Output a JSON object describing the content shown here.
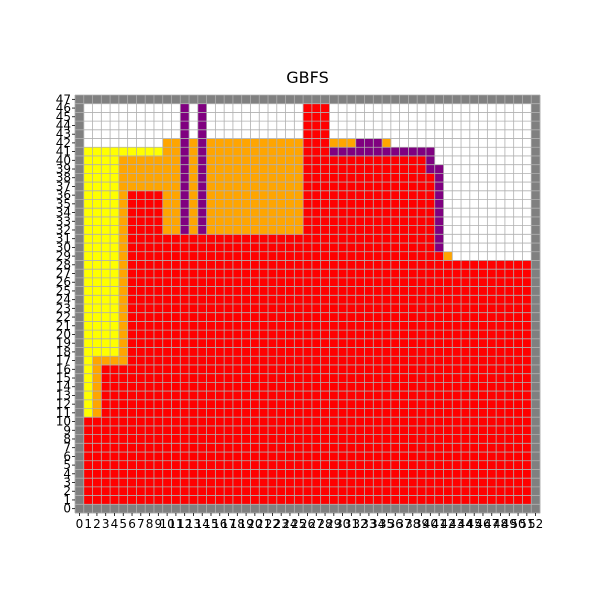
{
  "title": "GBFS",
  "grid": {
    "cols": 53,
    "rows": 48
  },
  "x_ticks": [
    "0",
    "1",
    "2",
    "3",
    "4",
    "5",
    "6",
    "7",
    "8",
    "9",
    "10",
    "11",
    "12",
    "13",
    "14",
    "15",
    "16",
    "17",
    "18",
    "19",
    "20",
    "21",
    "22",
    "23",
    "24",
    "25",
    "26",
    "27",
    "28",
    "29",
    "30",
    "31",
    "32",
    "33",
    "34",
    "35",
    "36",
    "37",
    "38",
    "39",
    "40",
    "41",
    "42",
    "43",
    "44",
    "45",
    "46",
    "47",
    "48",
    "49",
    "50",
    "51",
    "52"
  ],
  "y_ticks": [
    "0",
    "1",
    "2",
    "3",
    "4",
    "5",
    "6",
    "7",
    "8",
    "9",
    "10",
    "11",
    "12",
    "13",
    "14",
    "15",
    "16",
    "17",
    "18",
    "19",
    "20",
    "21",
    "22",
    "23",
    "24",
    "25",
    "26",
    "27",
    "28",
    "29",
    "30",
    "31",
    "32",
    "33",
    "34",
    "35",
    "36",
    "37",
    "38",
    "39",
    "40",
    "41",
    "42",
    "43",
    "44",
    "45",
    "46",
    "47"
  ],
  "colors": {
    "empty": "#ffffff",
    "wall": "#808080",
    "obstacle": "#ff0000",
    "visited": "#ffff00",
    "frontier": "#ffa500",
    "path": "#800080",
    "gridline": "#b0b0b0"
  },
  "layers": {
    "visited": [
      [
        1,
        3,
        27,
        11
      ],
      [
        1,
        18,
        26,
        21
      ],
      [
        1,
        26,
        31,
        10
      ],
      [
        2,
        8,
        34,
        1
      ],
      [
        2,
        9,
        34,
        5
      ],
      [
        2,
        10,
        35,
        4
      ],
      [
        2,
        11,
        46,
        3
      ],
      [
        2,
        12,
        46,
        2
      ],
      [
        2,
        13,
        45,
        1
      ],
      [
        2,
        16,
        36,
        9
      ],
      [
        3,
        9,
        23,
        2
      ],
      [
        3,
        16,
        16,
        1
      ],
      [
        3,
        15,
        35,
        5
      ],
      [
        3,
        18,
        15,
        2
      ],
      [
        4,
        9,
        18,
        1
      ],
      [
        4,
        18,
        14,
        2
      ],
      [
        5,
        10,
        13,
        3
      ],
      [
        6,
        18,
        12,
        5
      ],
      [
        10,
        12,
        12,
        1
      ],
      [
        11,
        11,
        26,
        7
      ],
      [
        12,
        14,
        13,
        1
      ],
      [
        13,
        17,
        11,
        1
      ],
      [
        13,
        24,
        3,
        27
      ],
      [
        13,
        29,
        2,
        1
      ],
      [
        14,
        21,
        2,
        2
      ],
      [
        14,
        23,
        10,
        2
      ],
      [
        14,
        25,
        4,
        3
      ],
      [
        14,
        29,
        2,
        1
      ],
      [
        15,
        31,
        13,
        7
      ],
      [
        16,
        33,
        10,
        3
      ],
      [
        17,
        41,
        1,
        5
      ]
    ],
    "frontier": [
      [
        1,
        3,
        32,
        1
      ],
      [
        2,
        7,
        35,
        1
      ],
      [
        2,
        8,
        34,
        1
      ],
      [
        2,
        4,
        19,
        2
      ],
      [
        3,
        2,
        20,
        1
      ],
      [
        3,
        9,
        3,
        1
      ],
      [
        5,
        40,
        27,
        5
      ],
      [
        9,
        3,
        11,
        1
      ],
      [
        10,
        11,
        39,
        1
      ],
      [
        10,
        12,
        43,
        1
      ],
      [
        10,
        13,
        44,
        1
      ],
      [
        10,
        14,
        45,
        2
      ],
      [
        10,
        15,
        46,
        16
      ],
      [
        10,
        29,
        42,
        1
      ],
      [
        10,
        30,
        38,
        2
      ],
      [
        10,
        37,
        41,
        1
      ],
      [
        10,
        40,
        40,
        1
      ],
      [
        10,
        42,
        34,
        1
      ],
      [
        11,
        5,
        3,
        1
      ],
      [
        12,
        2,
        17,
        1
      ],
      [
        12,
        1,
        18,
        1
      ],
      [
        12,
        17,
        2,
        1
      ],
      [
        15,
        42,
        35,
        1
      ],
      [
        16,
        42,
        34,
        1
      ],
      [
        17,
        42,
        32,
        1
      ]
    ],
    "path": [
      [
        2,
        1,
        2,
        7
      ],
      [
        3,
        9,
        10,
        1
      ],
      [
        3,
        10,
        11,
        1
      ],
      [
        3,
        11,
        11,
        1
      ],
      [
        10,
        10,
        11,
        20
      ],
      [
        11,
        30,
        11,
        21
      ],
      [
        12,
        51,
        12,
        1
      ],
      [
        13,
        24,
        13,
        28
      ],
      [
        14,
        51,
        14,
        1
      ],
      [
        25,
        23,
        25,
        4
      ],
      [
        27,
        17,
        25,
        5
      ],
      [
        27,
        14,
        28,
        1
      ],
      [
        29,
        27,
        42,
        1
      ],
      [
        29,
        29,
        41,
        12
      ],
      [
        29,
        30,
        40,
        1
      ],
      [
        32,
        41,
        40,
        1
      ],
      [
        32,
        39,
        33,
        1
      ],
      [
        34,
        40,
        34,
        2
      ],
      [
        34,
        42,
        32,
        1
      ],
      [
        40,
        41,
        26,
        14
      ],
      [
        41,
        39,
        34,
        1
      ],
      [
        43,
        24,
        25,
        8
      ]
    ],
    "obstacle": [
      [
        2,
        6,
        46,
        6
      ],
      [
        2,
        7,
        34,
        5
      ],
      [
        5,
        9,
        45,
        1
      ],
      [
        6,
        5,
        35,
        4
      ],
      [
        9,
        36,
        6,
        4
      ],
      [
        10,
        25,
        25,
        2
      ],
      [
        10,
        26,
        24,
        13
      ],
      [
        10,
        26,
        14,
        1
      ],
      [
        10,
        26,
        13,
        1
      ],
      [
        11,
        10,
        2,
        9
      ],
      [
        11,
        10,
        1,
        4
      ],
      [
        12,
        10,
        1,
        1
      ],
      [
        12,
        14,
        9,
        1
      ],
      [
        14,
        30,
        26,
        1
      ],
      [
        15,
        17,
        30,
        1
      ],
      [
        15,
        17,
        44,
        14
      ],
      [
        15,
        28,
        29,
        1
      ],
      [
        15,
        29,
        41,
        1
      ],
      [
        22,
        24,
        25,
        1
      ],
      [
        22,
        24,
        24,
        11
      ],
      [
        22,
        24,
        14,
        1
      ],
      [
        22,
        28,
        25,
        1
      ],
      [
        28,
        51,
        26,
        1
      ],
      [
        29,
        17,
        44,
        1
      ],
      [
        30,
        24,
        13,
        1
      ],
      [
        30,
        28,
        14,
        1
      ],
      [
        30,
        30,
        25,
        1
      ],
      [
        30,
        31,
        9,
        7
      ],
      [
        33,
        36,
        40,
        1
      ],
      [
        34,
        38,
        40,
        5
      ],
      [
        34,
        39,
        34,
        1
      ],
      [
        37,
        40,
        35,
        1
      ],
      [
        39,
        40,
        36,
        10
      ],
      [
        39,
        40,
        26,
        1
      ],
      [
        47,
        14,
        15,
        1
      ],
      [
        47,
        15,
        14,
        4
      ],
      [
        47,
        16,
        3,
        1
      ],
      [
        51,
        26,
        26,
        1
      ],
      [
        51,
        27,
        14,
        13
      ],
      [
        51,
        28,
        10,
        1
      ]
    ]
  }
}
